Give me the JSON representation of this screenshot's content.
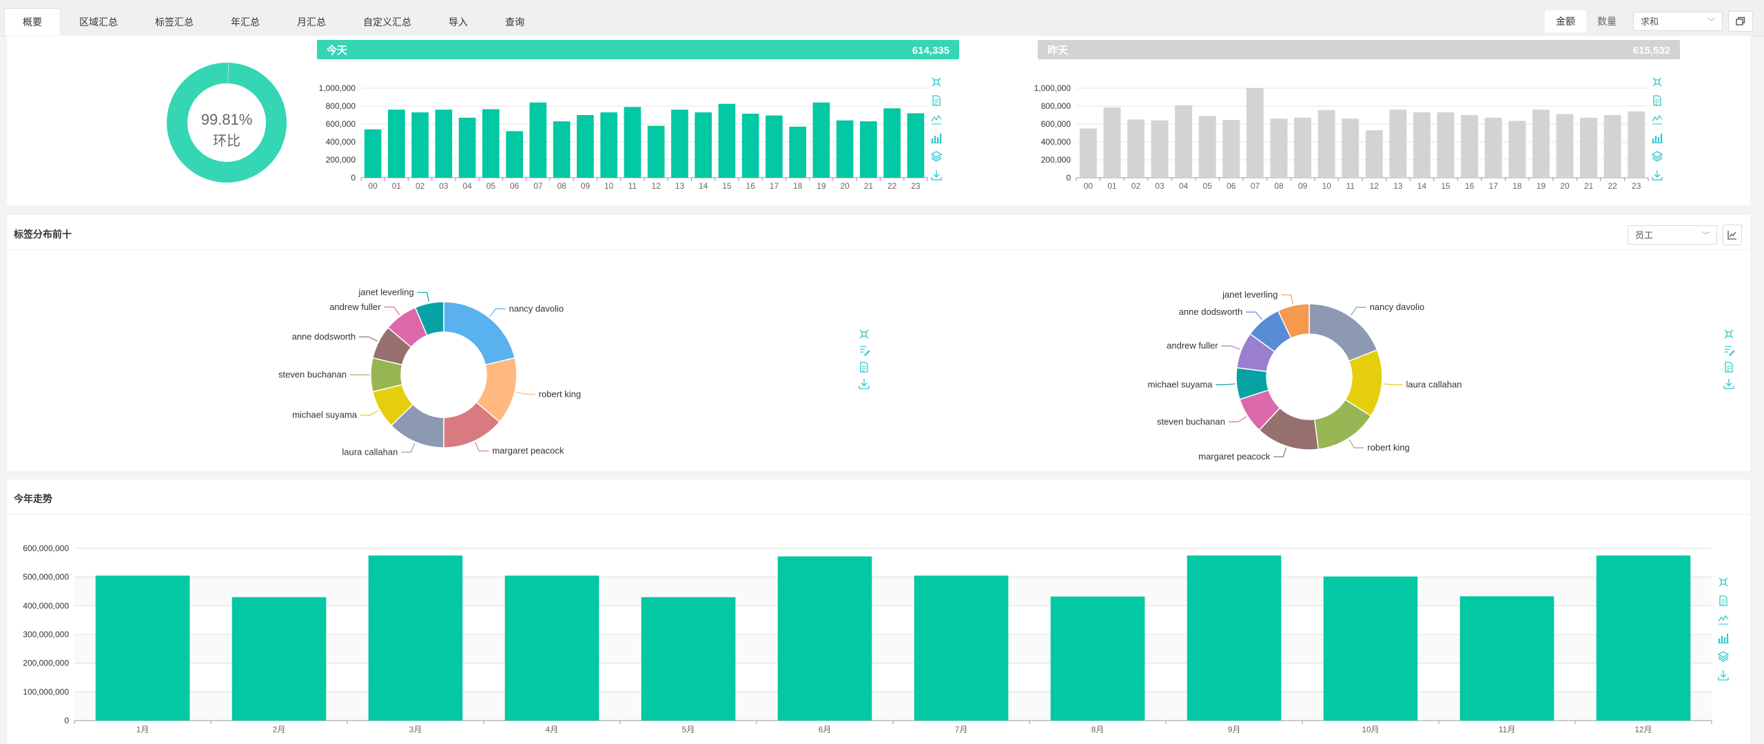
{
  "tabs": [
    "概要",
    "区域汇总",
    "标签汇总",
    "年汇总",
    "月汇总",
    "自定义汇总",
    "导入",
    "查询"
  ],
  "active_tab": 0,
  "metric_toggle": [
    "金额",
    "数量"
  ],
  "active_metric": 0,
  "aggregate_select": "求和",
  "colors": {
    "accent": "#02c8a3",
    "today_header": "#35d6b3",
    "yesterday_header": "#d3d3d3",
    "yesterday_bar": "#d3d3d3",
    "tool_icon": "#2ec7c9"
  },
  "overview": {
    "ratio_text": "99.81%",
    "ratio_label": "环比",
    "ratio_value": 0.9981,
    "today": {
      "label": "今天",
      "total": "614,335"
    },
    "yesterday": {
      "label": "昨天",
      "total": "615,532"
    }
  },
  "tag_section": {
    "title": "标签分布前十",
    "select": "员工"
  },
  "trend_section": {
    "title": "今年走势"
  },
  "chart_data": [
    {
      "type": "bar",
      "categories": [
        "00",
        "01",
        "02",
        "03",
        "04",
        "05",
        "06",
        "07",
        "08",
        "09",
        "10",
        "11",
        "12",
        "13",
        "14",
        "15",
        "16",
        "17",
        "18",
        "19",
        "20",
        "21",
        "22",
        "23"
      ],
      "values": [
        540000,
        760000,
        730000,
        760000,
        670000,
        765000,
        520000,
        840000,
        630000,
        700000,
        730000,
        790000,
        580000,
        760000,
        730000,
        825000,
        715000,
        695000,
        570000,
        840000,
        640000,
        630000,
        775000,
        720000
      ],
      "ylim": [
        0,
        1000000
      ],
      "yticks": [
        "0",
        "200,000",
        "400,000",
        "600,000",
        "800,000",
        "1,000,000"
      ]
    },
    {
      "type": "bar",
      "categories": [
        "00",
        "01",
        "02",
        "03",
        "04",
        "05",
        "06",
        "07",
        "08",
        "09",
        "10",
        "11",
        "12",
        "13",
        "14",
        "15",
        "16",
        "17",
        "18",
        "19",
        "20",
        "21",
        "22",
        "23"
      ],
      "values": [
        550000,
        785000,
        650000,
        640000,
        810000,
        690000,
        645000,
        1000000,
        660000,
        670000,
        755000,
        660000,
        530000,
        760000,
        730000,
        730000,
        700000,
        670000,
        635000,
        760000,
        710000,
        670000,
        700000,
        740000
      ],
      "ylim": [
        0,
        1000000
      ],
      "yticks": [
        "0",
        "200,000",
        "400,000",
        "600,000",
        "800,000",
        "1,000,000"
      ]
    },
    {
      "type": "pie",
      "slices": [
        {
          "name": "nancy davolio",
          "value": 20,
          "color": "#5ab1ef"
        },
        {
          "name": "robert king",
          "value": 14,
          "color": "#ffb980"
        },
        {
          "name": "margaret peacock",
          "value": 13,
          "color": "#d87a80"
        },
        {
          "name": "laura callahan",
          "value": 12,
          "color": "#8d98b3"
        },
        {
          "name": "michael suyama",
          "value": 8,
          "color": "#e5cf0d"
        },
        {
          "name": "steven buchanan",
          "value": 7,
          "color": "#97b552"
        },
        {
          "name": "anne dodsworth",
          "value": 7,
          "color": "#95706d"
        },
        {
          "name": "andrew fuller",
          "value": 7,
          "color": "#dc69aa"
        },
        {
          "name": "janet leverling",
          "value": 6,
          "color": "#07a2a4"
        }
      ]
    },
    {
      "type": "pie",
      "slices": [
        {
          "name": "nancy davolio",
          "value": 19,
          "color": "#8d98b3"
        },
        {
          "name": "laura callahan",
          "value": 15,
          "color": "#e5cf0d"
        },
        {
          "name": "robert king",
          "value": 14,
          "color": "#97b552"
        },
        {
          "name": "margaret peacock",
          "value": 14,
          "color": "#95706d"
        },
        {
          "name": "steven buchanan",
          "value": 8,
          "color": "#dc69aa"
        },
        {
          "name": "michael suyama",
          "value": 7,
          "color": "#07a2a4"
        },
        {
          "name": "andrew fuller",
          "value": 8,
          "color": "#9a7fd1"
        },
        {
          "name": "anne dodsworth",
          "value": 8,
          "color": "#588dd5"
        },
        {
          "name": "janet leverling",
          "value": 7,
          "color": "#f5994e"
        }
      ]
    },
    {
      "type": "bar",
      "categories": [
        "1月",
        "2月",
        "3月",
        "4月",
        "5月",
        "6月",
        "7月",
        "8月",
        "9月",
        "10月",
        "11月",
        "12月"
      ],
      "values": [
        505000000,
        430000000,
        575000000,
        505000000,
        430000000,
        572000000,
        505000000,
        432000000,
        575000000,
        502000000,
        433000000,
        575000000
      ],
      "ylim": [
        0,
        600000000
      ],
      "yticks": [
        "0",
        "100,000,000",
        "200,000,000",
        "300,000,000",
        "400,000,000",
        "500,000,000",
        "600,000,000"
      ]
    }
  ]
}
